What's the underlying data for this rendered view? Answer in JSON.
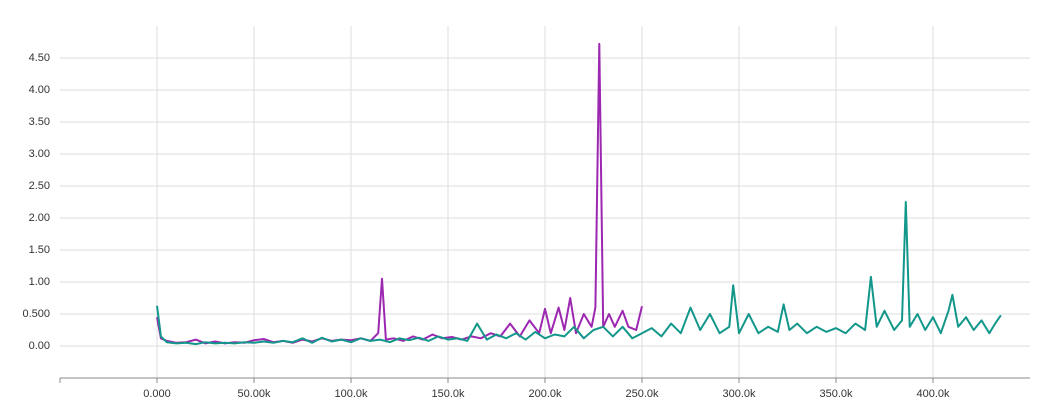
{
  "chart_data": {
    "type": "line",
    "xlim": [
      -50000,
      450000
    ],
    "ylim": [
      -0.5,
      5.0
    ],
    "grid": true,
    "xticks": [
      {
        "value": 0,
        "label": "0.000"
      },
      {
        "value": 50000,
        "label": "50.00k"
      },
      {
        "value": 100000,
        "label": "100.0k"
      },
      {
        "value": 150000,
        "label": "150.0k"
      },
      {
        "value": 200000,
        "label": "200.0k"
      },
      {
        "value": 250000,
        "label": "250.0k"
      },
      {
        "value": 300000,
        "label": "300.0k"
      },
      {
        "value": 350000,
        "label": "350.0k"
      },
      {
        "value": 400000,
        "label": "400.0k"
      }
    ],
    "yticks": [
      {
        "value": 0,
        "label": "0.00"
      },
      {
        "value": 0.5,
        "label": "0.500"
      },
      {
        "value": 1,
        "label": "1.00"
      },
      {
        "value": 1.5,
        "label": "1.50"
      },
      {
        "value": 2,
        "label": "2.00"
      },
      {
        "value": 2.5,
        "label": "2.50"
      },
      {
        "value": 3,
        "label": "3.00"
      },
      {
        "value": 3.5,
        "label": "3.50"
      },
      {
        "value": 4,
        "label": "4.00"
      },
      {
        "value": 4.5,
        "label": "4.50"
      }
    ],
    "series": [
      {
        "color": "#9c27b0",
        "x": [
          0,
          2000,
          5000,
          10000,
          15000,
          20000,
          25000,
          30000,
          35000,
          40000,
          45000,
          50000,
          55000,
          60000,
          65000,
          70000,
          75000,
          80000,
          85000,
          90000,
          95000,
          100000,
          105000,
          110000,
          114000,
          116000,
          118000,
          122000,
          127000,
          132000,
          137000,
          142000,
          147000,
          152000,
          157000,
          162000,
          167000,
          172000,
          177000,
          182000,
          187000,
          192000,
          197000,
          200000,
          203000,
          207000,
          210000,
          213000,
          216000,
          220000,
          224000,
          226000,
          228000,
          230000,
          233000,
          236000,
          240000,
          243000,
          247000,
          250000
        ],
        "values": [
          0.45,
          0.12,
          0.08,
          0.05,
          0.06,
          0.1,
          0.04,
          0.07,
          0.04,
          0.06,
          0.05,
          0.09,
          0.11,
          0.06,
          0.08,
          0.05,
          0.1,
          0.07,
          0.12,
          0.08,
          0.1,
          0.09,
          0.12,
          0.08,
          0.2,
          1.05,
          0.1,
          0.12,
          0.08,
          0.15,
          0.1,
          0.18,
          0.12,
          0.14,
          0.1,
          0.15,
          0.12,
          0.2,
          0.15,
          0.35,
          0.15,
          0.4,
          0.2,
          0.58,
          0.2,
          0.6,
          0.25,
          0.75,
          0.2,
          0.5,
          0.3,
          0.6,
          4.72,
          0.3,
          0.5,
          0.3,
          0.55,
          0.3,
          0.25,
          0.62
        ]
      },
      {
        "color": "#12978a",
        "x": [
          0,
          2000,
          5000,
          10000,
          15000,
          20000,
          25000,
          30000,
          35000,
          40000,
          45000,
          50000,
          55000,
          60000,
          65000,
          70000,
          75000,
          80000,
          85000,
          90000,
          95000,
          100000,
          105000,
          110000,
          115000,
          120000,
          125000,
          130000,
          135000,
          140000,
          145000,
          150000,
          155000,
          160000,
          165000,
          170000,
          175000,
          180000,
          185000,
          190000,
          195000,
          200000,
          205000,
          210000,
          215000,
          220000,
          225000,
          230000,
          235000,
          240000,
          245000,
          250000,
          255000,
          260000,
          265000,
          270000,
          275000,
          280000,
          285000,
          290000,
          295000,
          297000,
          300000,
          305000,
          310000,
          315000,
          320000,
          323000,
          326000,
          330000,
          335000,
          340000,
          345000,
          350000,
          355000,
          360000,
          365000,
          368000,
          371000,
          375000,
          380000,
          384000,
          386000,
          388000,
          392000,
          396000,
          400000,
          404000,
          408000,
          410000,
          413000,
          417000,
          421000,
          425000,
          429000,
          432000,
          435000
        ],
        "values": [
          0.63,
          0.15,
          0.06,
          0.04,
          0.05,
          0.03,
          0.06,
          0.04,
          0.05,
          0.04,
          0.06,
          0.05,
          0.07,
          0.05,
          0.08,
          0.06,
          0.12,
          0.05,
          0.13,
          0.07,
          0.1,
          0.06,
          0.12,
          0.08,
          0.1,
          0.06,
          0.12,
          0.09,
          0.13,
          0.08,
          0.15,
          0.1,
          0.12,
          0.08,
          0.35,
          0.1,
          0.18,
          0.12,
          0.2,
          0.1,
          0.22,
          0.12,
          0.18,
          0.15,
          0.3,
          0.12,
          0.25,
          0.3,
          0.15,
          0.3,
          0.12,
          0.2,
          0.28,
          0.15,
          0.35,
          0.2,
          0.6,
          0.25,
          0.5,
          0.2,
          0.3,
          0.95,
          0.2,
          0.5,
          0.2,
          0.3,
          0.22,
          0.65,
          0.25,
          0.35,
          0.2,
          0.3,
          0.22,
          0.28,
          0.2,
          0.35,
          0.25,
          1.08,
          0.3,
          0.55,
          0.25,
          0.4,
          2.25,
          0.3,
          0.5,
          0.25,
          0.45,
          0.2,
          0.55,
          0.8,
          0.3,
          0.45,
          0.25,
          0.4,
          0.2,
          0.35,
          0.48
        ]
      }
    ]
  }
}
